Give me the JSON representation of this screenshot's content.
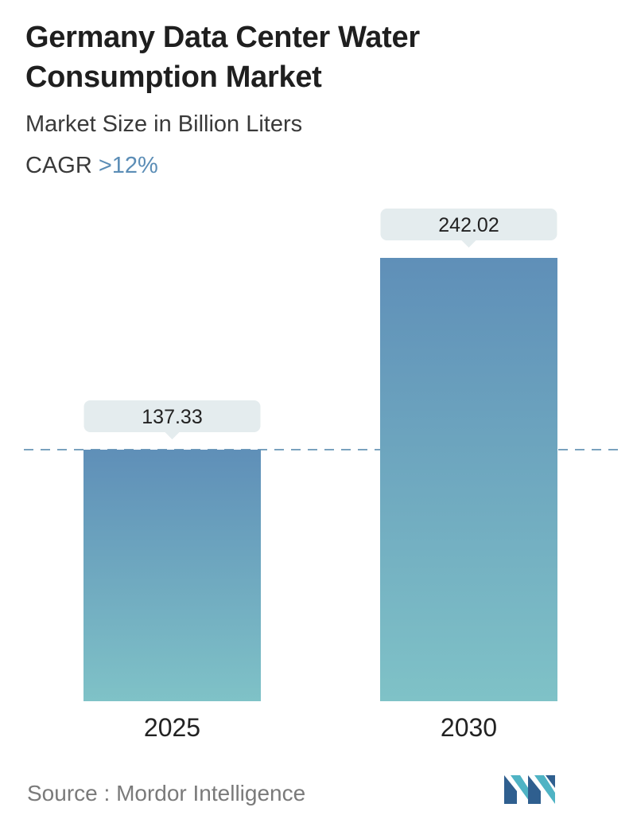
{
  "header": {
    "title": "Germany Data Center Water Consumption Market",
    "subtitle": "Market Size in Billion Liters",
    "cagr_label": "CAGR",
    "cagr_value": ">12%"
  },
  "footer": {
    "source_label": "Source :",
    "source_name": "Mordor Intelligence",
    "logo_icon": "mordor-intelligence-logo-icon"
  },
  "colors": {
    "bar_top": "#5f8fb8",
    "bar_bottom": "#7fc2c7",
    "callout": "#e4ecee",
    "dashed_line": "#5f8fb0",
    "cagr_accent": "#5b8db6",
    "logo_dark": "#2f5f8f",
    "logo_light": "#4fb3c4"
  },
  "chart_data": {
    "type": "bar",
    "categories": [
      "2025",
      "2030"
    ],
    "values": [
      137.33,
      242.02
    ],
    "value_labels": [
      "137.33",
      "242.02"
    ],
    "title": "Germany Data Center Water Consumption Market",
    "subtitle": "Market Size in Billion Liters",
    "xlabel": "",
    "ylabel": "",
    "grid": false,
    "reference_line": "dashed horizontal line at the 2025 value"
  }
}
